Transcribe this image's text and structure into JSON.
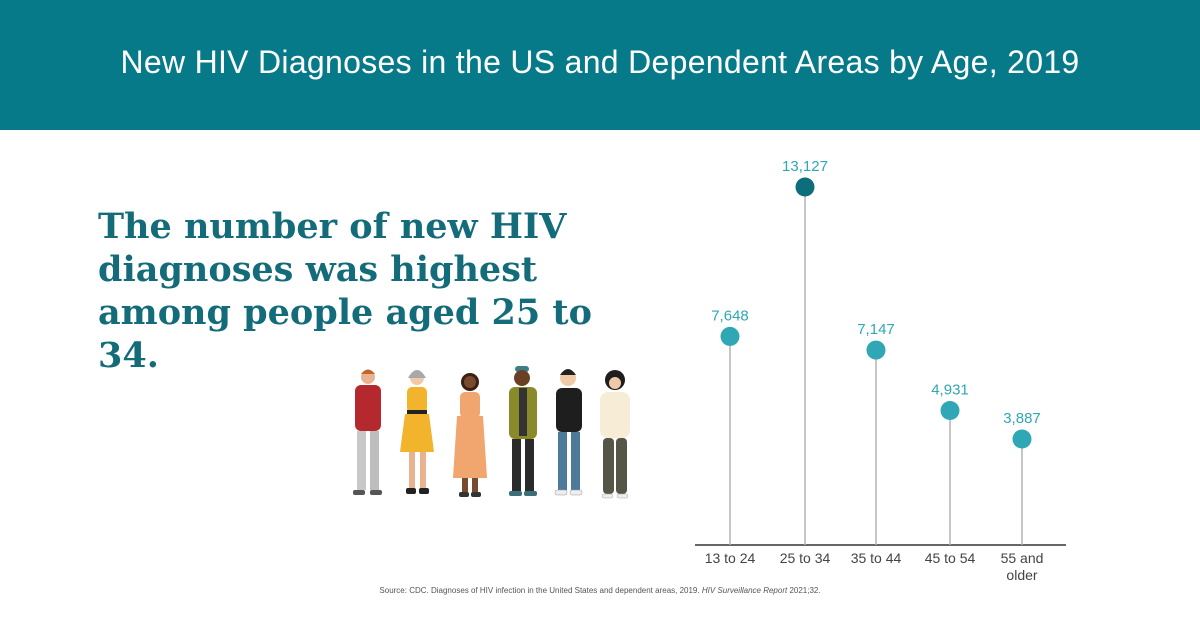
{
  "header": {
    "title": "New HIV Diagnoses in the US and Dependent Areas by Age, 2019"
  },
  "headline": "The number of new HIV diagnoses was highest among people aged 25 to 34.",
  "source": {
    "text": "Source: CDC. Diagnoses of HIV infection in the United States and dependent areas, 2019.",
    "italic": "HIV Surveillance Report",
    "tail": "2021;32."
  },
  "colors": {
    "header_bg": "#077a8a",
    "headline": "#146c7a",
    "dot": "#2fa7b4",
    "dot_highlight": "#0d6e7b",
    "stem": "#b3b3b3",
    "label": "#2fa7b4"
  },
  "chart_data": {
    "type": "lollipop",
    "title": "",
    "xlabel": "",
    "ylabel": "",
    "categories": [
      "13 to 24",
      "25 to 34",
      "35 to 44",
      "45 to 54",
      "55 and older"
    ],
    "category_lines": [
      [
        "13 to 24"
      ],
      [
        "25 to 34"
      ],
      [
        "35 to 44"
      ],
      [
        "45 to 54"
      ],
      [
        "55 and",
        "older"
      ]
    ],
    "values": [
      7648,
      13127,
      7147,
      4931,
      3887
    ],
    "value_labels": [
      "7,648",
      "13,127",
      "7,147",
      "4,931",
      "3,887"
    ],
    "highlight_index": 1,
    "ylim": [
      0,
      13127
    ],
    "grid": false
  }
}
